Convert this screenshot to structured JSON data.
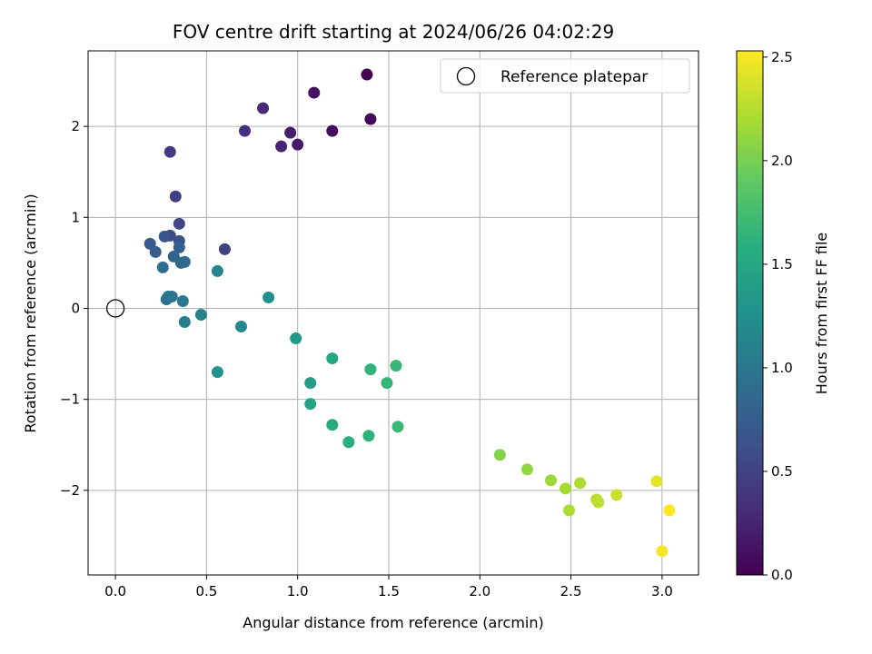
{
  "chart_data": {
    "type": "scatter",
    "title": "FOV centre drift starting at 2024/06/26 04:02:29",
    "xlabel": "Angular distance from reference (arcmin)",
    "ylabel": "Rotation from reference (arcmin)",
    "xlim": [
      -0.15,
      3.2
    ],
    "ylim": [
      -2.93,
      2.83
    ],
    "xticks": [
      0.0,
      0.5,
      1.0,
      1.5,
      2.0,
      2.5,
      3.0
    ],
    "xtick_labels": [
      "0.0",
      "0.5",
      "1.0",
      "1.5",
      "2.0",
      "2.5",
      "3.0"
    ],
    "yticks": [
      -2,
      -1,
      0,
      1,
      2
    ],
    "ytick_labels": [
      "−2",
      "−1",
      "0",
      "1",
      "2"
    ],
    "grid": true,
    "legend": {
      "placement": "top-right",
      "entries": [
        {
          "label": "Reference platepar",
          "marker": "open-circle"
        }
      ]
    },
    "reference_point": {
      "x": 0.0,
      "y": 0.0
    },
    "colorbar": {
      "label": "Hours from first FF file",
      "colormap": "viridis",
      "range": [
        0.0,
        2.53
      ],
      "ticks": [
        0.0,
        0.5,
        1.0,
        1.5,
        2.0,
        2.5
      ],
      "tick_labels": [
        "0.0",
        "0.5",
        "1.0",
        "1.5",
        "2.0",
        "2.5"
      ]
    },
    "points": [
      {
        "x": 1.38,
        "y": 2.57,
        "c": 0.0
      },
      {
        "x": 1.4,
        "y": 2.08,
        "c": 0.04
      },
      {
        "x": 1.19,
        "y": 1.95,
        "c": 0.08
      },
      {
        "x": 1.09,
        "y": 2.37,
        "c": 0.12
      },
      {
        "x": 1.0,
        "y": 1.8,
        "c": 0.17
      },
      {
        "x": 0.96,
        "y": 1.93,
        "c": 0.21
      },
      {
        "x": 0.91,
        "y": 1.78,
        "c": 0.25
      },
      {
        "x": 0.81,
        "y": 2.2,
        "c": 0.29
      },
      {
        "x": 0.71,
        "y": 1.95,
        "c": 0.33
      },
      {
        "x": 0.3,
        "y": 1.72,
        "c": 0.42
      },
      {
        "x": 0.33,
        "y": 1.23,
        "c": 0.46
      },
      {
        "x": 0.6,
        "y": 0.65,
        "c": 0.5
      },
      {
        "x": 0.35,
        "y": 0.93,
        "c": 0.54
      },
      {
        "x": 0.3,
        "y": 0.8,
        "c": 0.58
      },
      {
        "x": 0.35,
        "y": 0.74,
        "c": 0.62
      },
      {
        "x": 0.27,
        "y": 0.79,
        "c": 0.66
      },
      {
        "x": 0.19,
        "y": 0.71,
        "c": 0.7
      },
      {
        "x": 0.22,
        "y": 0.62,
        "c": 0.74
      },
      {
        "x": 0.35,
        "y": 0.67,
        "c": 0.78
      },
      {
        "x": 0.32,
        "y": 0.57,
        "c": 0.82
      },
      {
        "x": 0.36,
        "y": 0.5,
        "c": 0.86
      },
      {
        "x": 0.38,
        "y": 0.51,
        "c": 0.88
      },
      {
        "x": 0.26,
        "y": 0.45,
        "c": 0.9
      },
      {
        "x": 0.28,
        "y": 0.1,
        "c": 0.94
      },
      {
        "x": 0.29,
        "y": 0.13,
        "c": 0.96
      },
      {
        "x": 0.31,
        "y": 0.13,
        "c": 0.98
      },
      {
        "x": 0.37,
        "y": 0.08,
        "c": 1.02
      },
      {
        "x": 0.38,
        "y": -0.15,
        "c": 1.06
      },
      {
        "x": 0.47,
        "y": -0.07,
        "c": 1.1
      },
      {
        "x": 0.56,
        "y": 0.41,
        "c": 1.14
      },
      {
        "x": 0.69,
        "y": -0.2,
        "c": 1.18
      },
      {
        "x": 0.84,
        "y": 0.12,
        "c": 1.24
      },
      {
        "x": 0.56,
        "y": -0.7,
        "c": 1.3
      },
      {
        "x": 0.99,
        "y": -0.33,
        "c": 1.36
      },
      {
        "x": 1.07,
        "y": -0.82,
        "c": 1.42
      },
      {
        "x": 1.07,
        "y": -1.05,
        "c": 1.46
      },
      {
        "x": 1.19,
        "y": -0.55,
        "c": 1.5
      },
      {
        "x": 1.19,
        "y": -1.28,
        "c": 1.54
      },
      {
        "x": 1.28,
        "y": -1.47,
        "c": 1.58
      },
      {
        "x": 1.39,
        "y": -1.4,
        "c": 1.62
      },
      {
        "x": 1.4,
        "y": -0.67,
        "c": 1.64
      },
      {
        "x": 1.49,
        "y": -0.82,
        "c": 1.66
      },
      {
        "x": 1.54,
        "y": -0.63,
        "c": 1.68
      },
      {
        "x": 1.55,
        "y": -1.3,
        "c": 1.7
      },
      {
        "x": 2.11,
        "y": -1.61,
        "c": 2.05
      },
      {
        "x": 2.26,
        "y": -1.77,
        "c": 2.1
      },
      {
        "x": 2.39,
        "y": -1.89,
        "c": 2.14
      },
      {
        "x": 2.47,
        "y": -1.98,
        "c": 2.18
      },
      {
        "x": 2.49,
        "y": -2.22,
        "c": 2.2
      },
      {
        "x": 2.55,
        "y": -1.92,
        "c": 2.22
      },
      {
        "x": 2.64,
        "y": -2.1,
        "c": 2.26
      },
      {
        "x": 2.65,
        "y": -2.13,
        "c": 2.28
      },
      {
        "x": 2.75,
        "y": -2.05,
        "c": 2.32
      },
      {
        "x": 2.97,
        "y": -1.9,
        "c": 2.44
      },
      {
        "x": 3.0,
        "y": -2.67,
        "c": 2.5
      },
      {
        "x": 3.04,
        "y": -2.22,
        "c": 2.53
      }
    ]
  }
}
